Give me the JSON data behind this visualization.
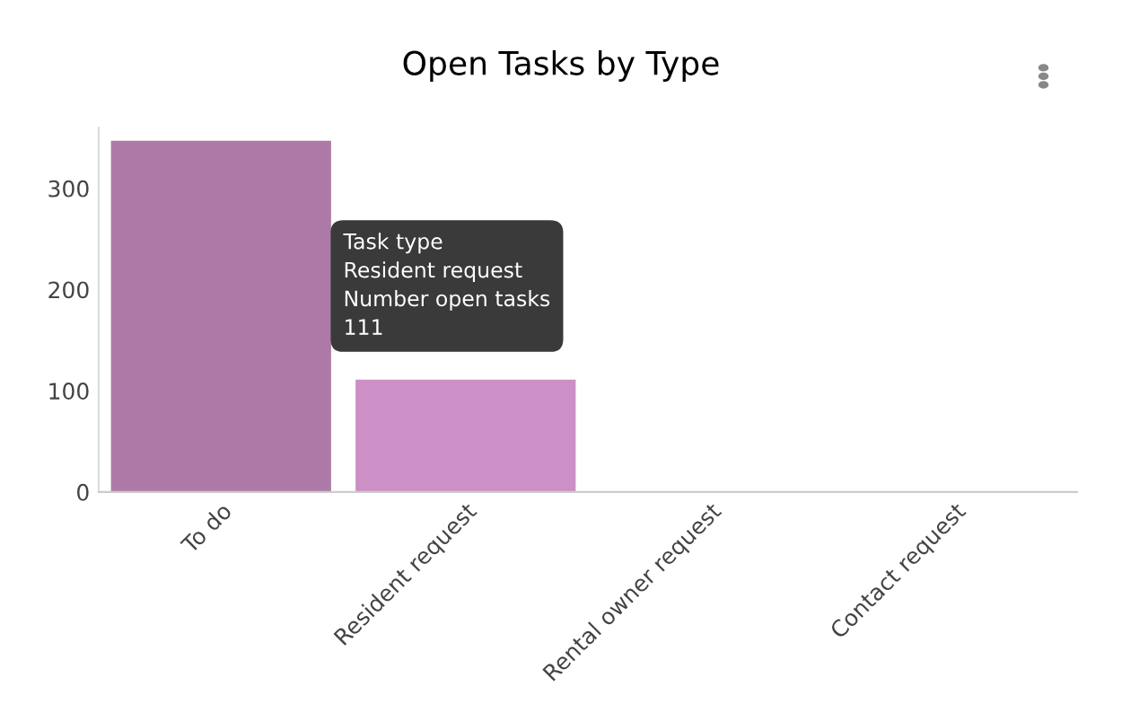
{
  "chart_data": {
    "type": "bar",
    "title": "Open Tasks by Type",
    "categories": [
      "To do",
      "Resident request",
      "Rental owner request",
      "Contact request"
    ],
    "values": [
      347,
      111,
      0,
      0
    ],
    "colors": [
      "#ad7aa8",
      "#cc8fc6",
      "#ad7aa8",
      "#ad7aa8"
    ],
    "ylim": [
      0,
      360
    ],
    "yticks": [
      0,
      100,
      200,
      300
    ],
    "grid": false,
    "legend": false,
    "annotations": [
      {
        "text": "Task type\nResident request\nNumber open tasks\n111",
        "x": "Resident request",
        "y": 111
      }
    ]
  }
}
